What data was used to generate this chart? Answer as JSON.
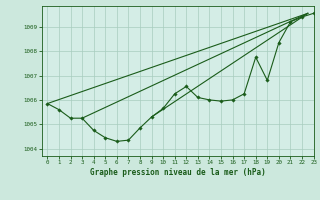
{
  "title": "Graphe pression niveau de la mer (hPa)",
  "background_color": "#cce8dd",
  "plot_bg_color": "#d4ede6",
  "grid_color": "#a8ccbf",
  "line_color": "#1a5c1a",
  "xlim": [
    -0.5,
    23
  ],
  "ylim": [
    1003.7,
    1009.85
  ],
  "yticks": [
    1004,
    1005,
    1006,
    1007,
    1008,
    1009
  ],
  "xticks": [
    0,
    1,
    2,
    3,
    4,
    5,
    6,
    7,
    8,
    9,
    10,
    11,
    12,
    13,
    14,
    15,
    16,
    17,
    18,
    19,
    20,
    21,
    22,
    23
  ],
  "data_main": {
    "x": [
      0,
      1,
      2,
      3,
      4,
      5,
      6,
      7,
      8,
      9,
      10,
      11,
      12,
      13,
      14,
      15,
      16,
      17,
      18,
      19,
      20,
      21,
      22,
      23
    ],
    "y": [
      1005.85,
      1005.6,
      1005.25,
      1005.25,
      1004.75,
      1004.45,
      1004.3,
      1004.35,
      1004.85,
      1005.3,
      1005.65,
      1006.25,
      1006.55,
      1006.1,
      1006.0,
      1005.95,
      1006.0,
      1006.25,
      1007.75,
      1006.8,
      1008.35,
      1009.2,
      1009.4,
      1009.55
    ]
  },
  "line_straight1": {
    "x": [
      0,
      22.5
    ],
    "y": [
      1005.85,
      1009.55
    ]
  },
  "line_straight2": {
    "x": [
      3,
      22.5
    ],
    "y": [
      1005.25,
      1009.55
    ]
  },
  "line_straight3": {
    "x": [
      9,
      22.5
    ],
    "y": [
      1005.3,
      1009.55
    ]
  }
}
